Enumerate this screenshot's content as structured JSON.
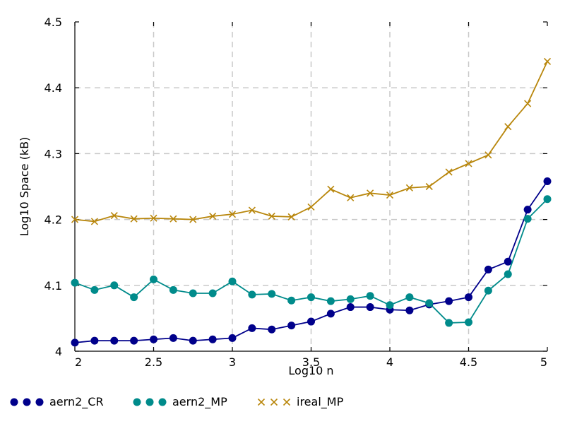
{
  "chart_data": {
    "type": "line",
    "title": "",
    "xlabel": "Log10 n",
    "ylabel": "Log10 Space (kB)",
    "xlim": [
      2,
      5
    ],
    "ylim": [
      4,
      4.5
    ],
    "grid": true,
    "legend_position": "bottom",
    "x_ticks": [
      "2",
      "2.5",
      "3",
      "3.5",
      "4",
      "4.5",
      "5"
    ],
    "y_ticks": [
      "4",
      "4.1",
      "4.2",
      "4.3",
      "4.4",
      "4.5"
    ],
    "x": [
      2,
      2.125,
      2.25,
      2.375,
      2.5,
      2.625,
      2.75,
      2.875,
      3,
      3.125,
      3.25,
      3.375,
      3.5,
      3.625,
      3.75,
      3.875,
      4,
      4.125,
      4.25,
      4.375,
      4.5,
      4.625,
      4.75,
      4.875,
      5
    ],
    "series": [
      {
        "name": "aern2_CR",
        "color": "#00008b",
        "marker": "circle",
        "values": [
          4.013,
          4.016,
          4.016,
          4.016,
          4.018,
          4.02,
          4.016,
          4.018,
          4.02,
          4.035,
          4.033,
          4.039,
          4.045,
          4.057,
          4.067,
          4.067,
          4.063,
          4.062,
          4.071,
          4.076,
          4.082,
          4.124,
          4.136,
          4.215,
          4.258
        ]
      },
      {
        "name": "aern2_MP",
        "color": "#008b8b",
        "marker": "circle",
        "values": [
          4.104,
          4.093,
          4.1,
          4.082,
          4.109,
          4.093,
          4.088,
          4.088,
          4.106,
          4.086,
          4.087,
          4.077,
          4.082,
          4.076,
          4.079,
          4.084,
          4.07,
          4.082,
          4.073,
          4.043,
          4.044,
          4.092,
          4.117,
          4.201,
          4.231
        ]
      },
      {
        "name": "ireal_MP",
        "color": "#b8860b",
        "marker": "x",
        "values": [
          4.2,
          4.197,
          4.206,
          4.201,
          4.202,
          4.201,
          4.2,
          4.205,
          4.208,
          4.214,
          4.205,
          4.204,
          4.219,
          4.246,
          4.233,
          4.24,
          4.237,
          4.248,
          4.25,
          4.272,
          4.285,
          4.298,
          4.341,
          4.376,
          4.44
        ]
      }
    ]
  }
}
